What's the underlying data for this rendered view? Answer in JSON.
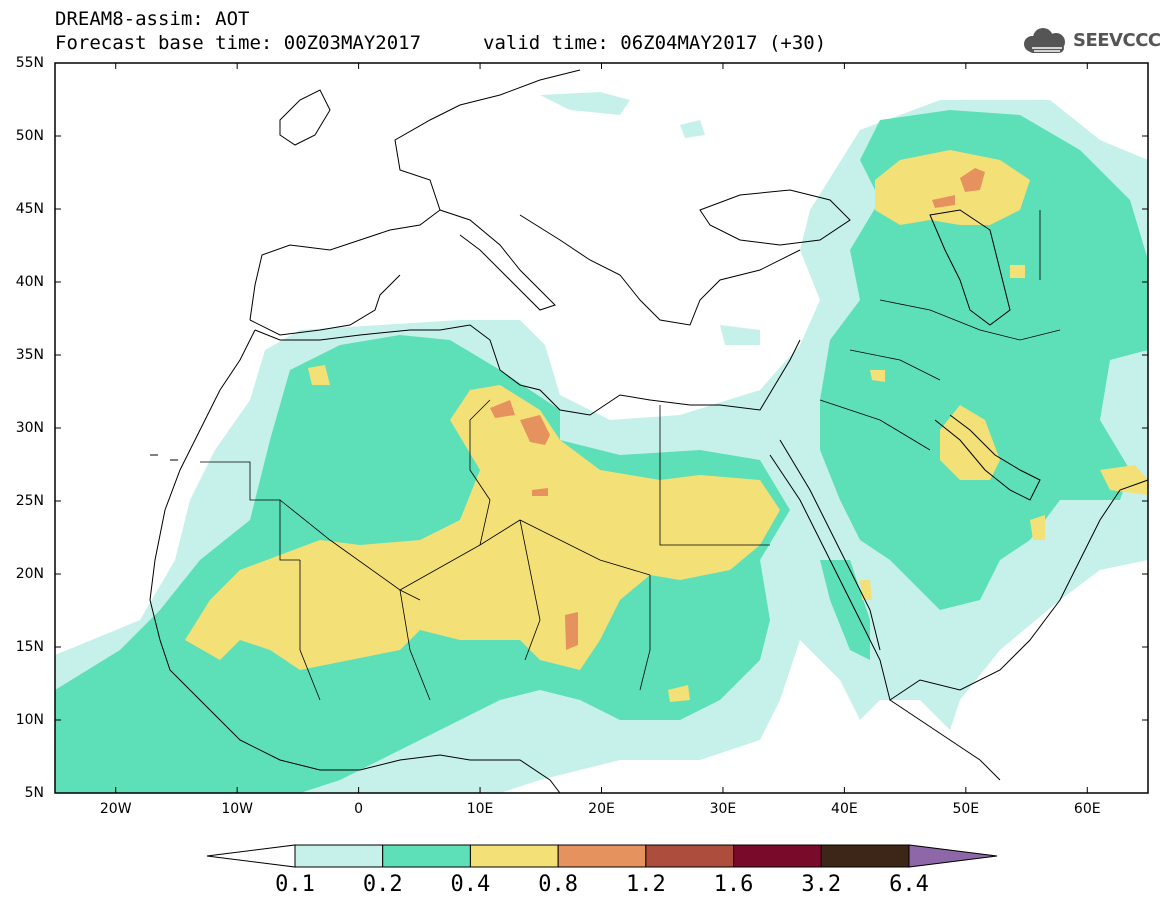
{
  "title": {
    "line1": "DREAM8-assim: AOT",
    "line2": "Forecast base time: 00Z03MAY2017",
    "valid": "valid time: 06Z04MAY2017 (+30)"
  },
  "logo": {
    "text": "SEEVCCC",
    "icon": "cloud-icon"
  },
  "map": {
    "lat_labels": [
      "55N",
      "50N",
      "45N",
      "40N",
      "35N",
      "30N",
      "25N",
      "20N",
      "15N",
      "10N",
      "5N"
    ],
    "lon_labels": [
      "20W",
      "10W",
      "0",
      "10E",
      "20E",
      "30E",
      "40E",
      "50E",
      "60E"
    ],
    "lat_range": [
      5,
      55
    ],
    "lon_range": [
      -25,
      65
    ]
  },
  "colorbar": {
    "labels": [
      "0.1",
      "0.2",
      "0.4",
      "0.8",
      "1.2",
      "1.6",
      "3.2",
      "6.4"
    ],
    "colors": [
      "#ffffff",
      "#c6f1ea",
      "#5ddfb8",
      "#f3e178",
      "#e6925f",
      "#ad4d3d",
      "#7a0a2a",
      "#3d2617",
      "#8d67a8"
    ]
  },
  "palette": {
    "level1": "#c6f1ea",
    "level2": "#5ddfb8",
    "level3": "#f3e178",
    "level4": "#e6925f"
  }
}
